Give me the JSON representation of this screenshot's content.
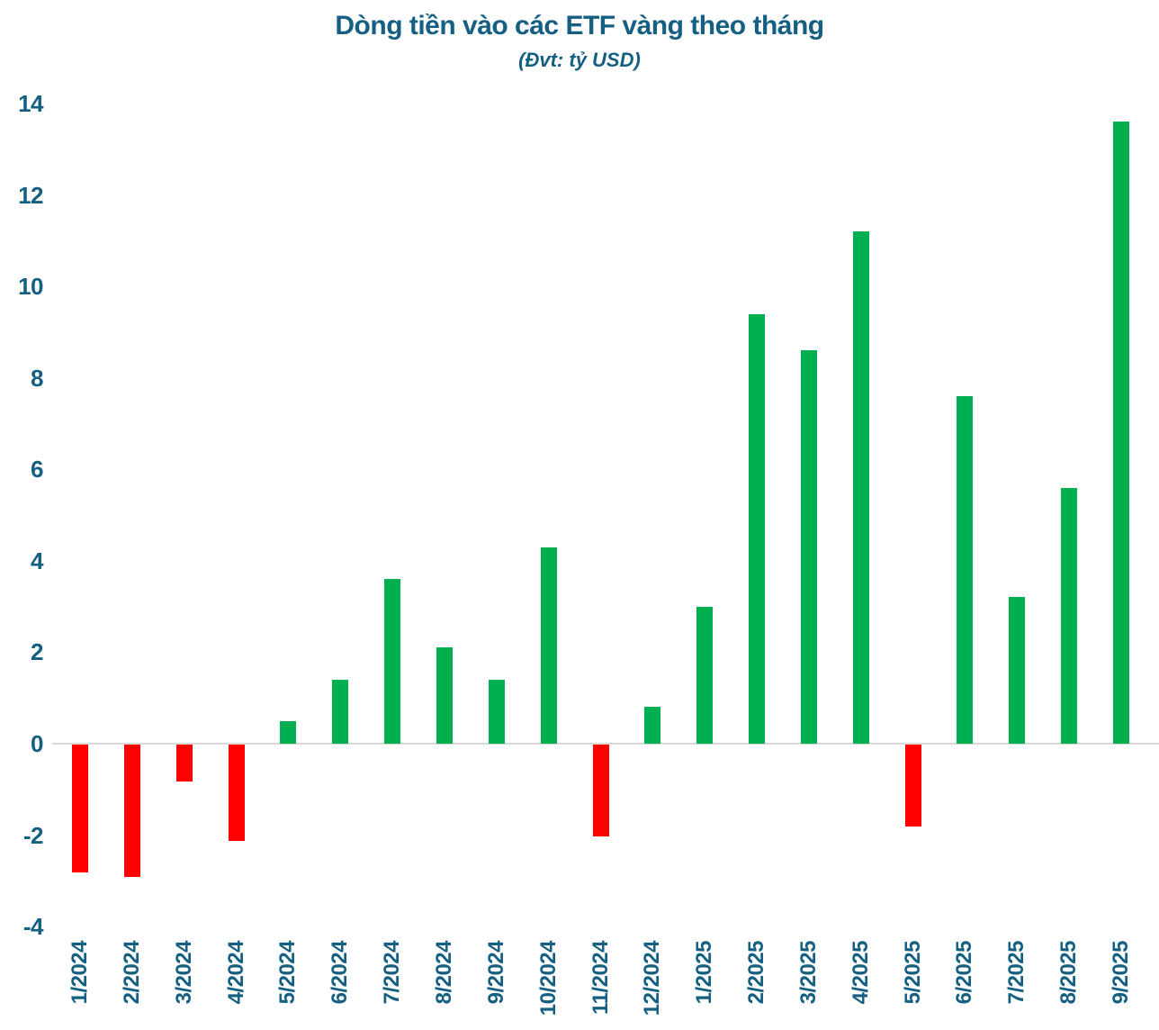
{
  "page": {
    "background": "#FFFFFF"
  },
  "chart_data": {
    "type": "bar",
    "title": "Dòng tiền vào các ETF vàng theo tháng",
    "subtitle": "(Đvt: tỷ USD)",
    "categories": [
      "1/2024",
      "2/2024",
      "3/2024",
      "4/2024",
      "5/2024",
      "6/2024",
      "7/2024",
      "8/2024",
      "9/2024",
      "10/2024",
      "11/2024",
      "12/2024",
      "1/2025",
      "2/2025",
      "3/2025",
      "4/2025",
      "5/2025",
      "6/2025",
      "7/2025",
      "8/2025",
      "9/2025"
    ],
    "values": [
      -2.8,
      -2.9,
      -0.8,
      -2.1,
      0.5,
      1.4,
      3.6,
      2.1,
      1.4,
      4.3,
      -2.0,
      0.8,
      3.0,
      9.4,
      8.6,
      11.2,
      -1.8,
      7.6,
      3.2,
      5.6,
      13.6
    ],
    "xlabel": "",
    "ylabel": "",
    "ylim": [
      -4,
      14
    ],
    "yticks": [
      14,
      12,
      10,
      8,
      6,
      4,
      2,
      0,
      -2,
      -4
    ],
    "grid": "zero-line-only",
    "legend_position": "none",
    "colors": {
      "positive": "#00B050",
      "negative": "#FF0000",
      "axis_text": "#156082",
      "zero_line": "#D9D9D9"
    }
  }
}
